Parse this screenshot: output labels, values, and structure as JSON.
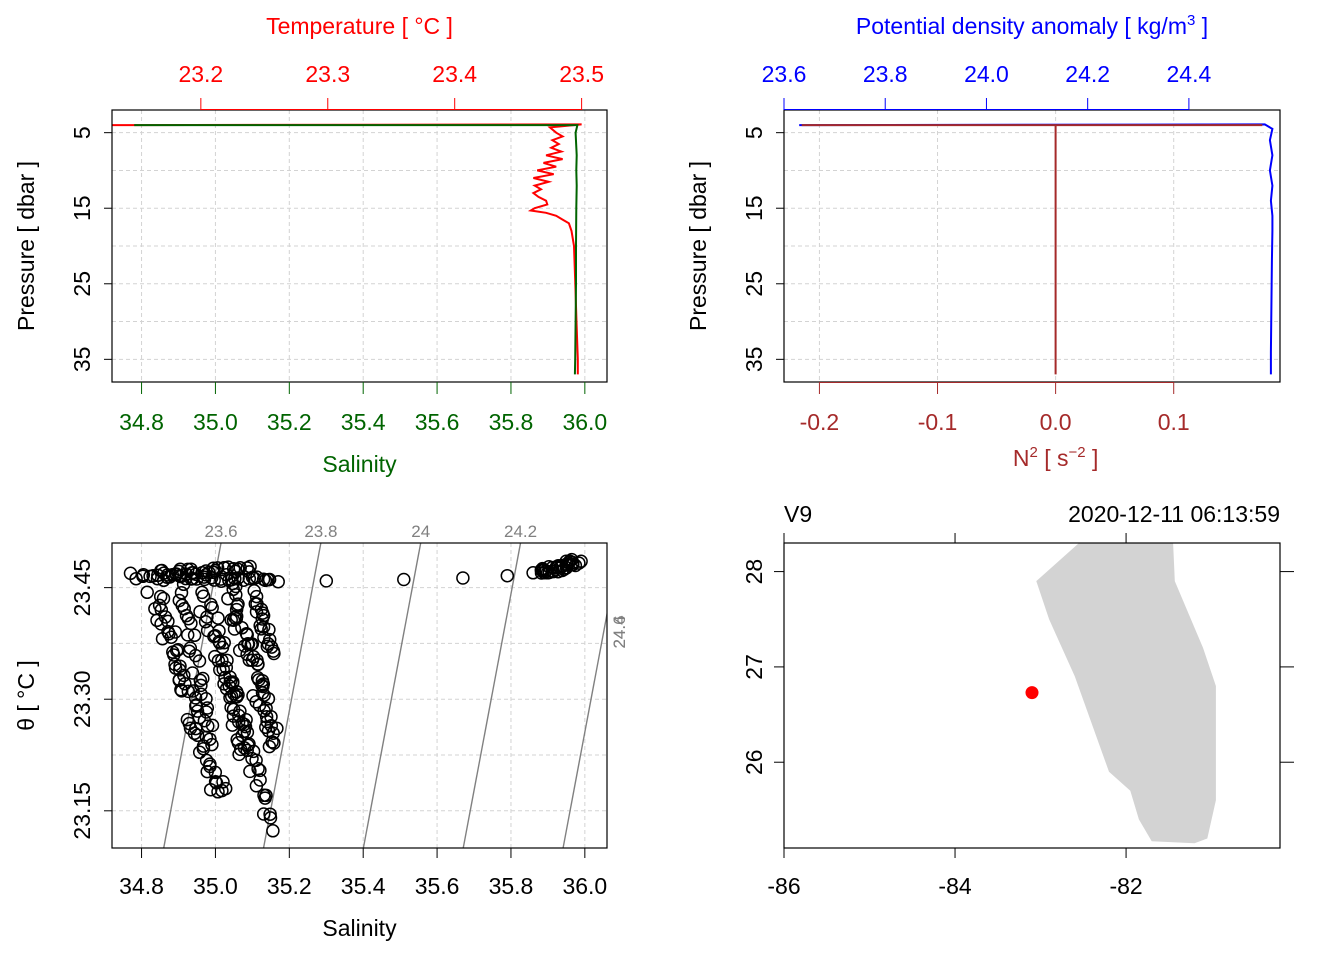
{
  "colors": {
    "temperature": "#ff0000",
    "salinity": "#006400",
    "density": "#0000ff",
    "n2": "#a52a2a",
    "grid": "#d3d3d3",
    "isopycnal": "#808080",
    "land": "#d3d3d3",
    "station": "#ff0000"
  },
  "chart_data": [
    {
      "type": "line",
      "panel": "temperature-salinity-profile",
      "ylabel": "Pressure [ dbar ]",
      "ylim": [
        38,
        2
      ],
      "yticks": [
        "5",
        "15",
        "25",
        "35"
      ],
      "axes": {
        "top": {
          "label": "Temperature [ °C ]",
          "ticks": [
            "23.2",
            "23.3",
            "23.4",
            "23.5"
          ],
          "lim": [
            23.13,
            23.52
          ]
        },
        "bottom": {
          "label": "Salinity",
          "ticks": [
            "34.8",
            "35.0",
            "35.2",
            "35.4",
            "35.6",
            "35.8",
            "36.0"
          ],
          "lim": [
            34.72,
            36.06
          ]
        }
      },
      "grid": true,
      "series": [
        {
          "axis": "top",
          "points": [
            [
              23.13,
              4.0
            ],
            [
              23.5,
              3.9
            ],
            [
              23.475,
              4.3
            ],
            [
              23.48,
              5.0
            ],
            [
              23.485,
              5.5
            ],
            [
              23.477,
              6.0
            ],
            [
              23.482,
              6.5
            ],
            [
              23.476,
              7.0
            ],
            [
              23.484,
              7.5
            ],
            [
              23.472,
              8.0
            ],
            [
              23.485,
              8.5
            ],
            [
              23.47,
              9.0
            ],
            [
              23.48,
              9.5
            ],
            [
              23.465,
              10.0
            ],
            [
              23.478,
              10.5
            ],
            [
              23.462,
              11.0
            ],
            [
              23.474,
              11.5
            ],
            [
              23.463,
              12.0
            ],
            [
              23.468,
              12.5
            ],
            [
              23.462,
              13.0
            ],
            [
              23.466,
              13.5
            ],
            [
              23.472,
              14.0
            ],
            [
              23.473,
              14.5
            ],
            [
              23.463,
              15.0
            ],
            [
              23.46,
              15.3
            ],
            [
              23.472,
              15.6
            ],
            [
              23.48,
              16.0
            ],
            [
              23.485,
              16.5
            ],
            [
              23.49,
              17.0
            ],
            [
              23.492,
              18.0
            ],
            [
              23.494,
              20.0
            ],
            [
              23.495,
              25.0
            ],
            [
              23.496,
              30.0
            ],
            [
              23.497,
              35.0
            ],
            [
              23.497,
              37.0
            ]
          ]
        },
        {
          "axis": "bottom",
          "points": [
            [
              34.78,
              4.0
            ],
            [
              35.98,
              4.0
            ],
            [
              35.975,
              5.0
            ],
            [
              35.978,
              8.0
            ],
            [
              35.977,
              10.0
            ],
            [
              35.978,
              12.0
            ],
            [
              35.977,
              15.0
            ],
            [
              35.976,
              20.0
            ],
            [
              35.976,
              25.0
            ],
            [
              35.975,
              30.0
            ],
            [
              35.974,
              35.0
            ],
            [
              35.973,
              37.0
            ]
          ]
        }
      ]
    },
    {
      "type": "line",
      "panel": "density-n2-profile",
      "ylabel": "Pressure [ dbar ]",
      "ylim": [
        38,
        2
      ],
      "yticks": [
        "5",
        "15",
        "25",
        "35"
      ],
      "axes": {
        "top": {
          "label": "Potential density anomaly [ kg/m³ ]",
          "ticks": [
            "23.6",
            "23.8",
            "24.0",
            "24.2",
            "24.4"
          ],
          "lim": [
            23.6,
            24.58
          ]
        },
        "bottom": {
          "label": "N² [ s⁻² ]",
          "ticks": [
            "-0.2",
            "-0.1",
            "0.0",
            "0.1"
          ],
          "lim": [
            -0.23,
            0.19
          ]
        }
      },
      "grid": true,
      "series": [
        {
          "axis": "top",
          "points": [
            [
              23.63,
              4.0
            ],
            [
              24.55,
              3.9
            ],
            [
              24.565,
              4.5
            ],
            [
              24.56,
              6.0
            ],
            [
              24.565,
              8.0
            ],
            [
              24.56,
              10.0
            ],
            [
              24.565,
              12.0
            ],
            [
              24.562,
              14.0
            ],
            [
              24.565,
              16.0
            ],
            [
              24.565,
              18.0
            ],
            [
              24.564,
              22.0
            ],
            [
              24.563,
              28.0
            ],
            [
              24.562,
              34.0
            ],
            [
              24.562,
              37.0
            ]
          ]
        },
        {
          "axis": "bottom",
          "points": [
            [
              -0.215,
              4.0
            ],
            [
              0.175,
              4.0
            ],
            [
              0.0,
              4.0
            ],
            [
              0.0,
              37.0
            ]
          ]
        }
      ]
    },
    {
      "type": "scatter",
      "panel": "ts-diagram",
      "xlabel": "Salinity",
      "ylabel": "θ [ °C ]",
      "xlim": [
        34.72,
        36.06
      ],
      "ylim": [
        23.1,
        23.51
      ],
      "xticks": [
        "34.8",
        "35.0",
        "35.2",
        "35.4",
        "35.6",
        "35.8",
        "36.0"
      ],
      "yticks": [
        "23.15",
        "23.30",
        "23.45"
      ],
      "grid": true,
      "isopycnals": [
        {
          "label": "23.6",
          "sigma": 23.6
        },
        {
          "label": "23.8",
          "sigma": 23.8
        },
        {
          "label": "24",
          "sigma": 24.0
        },
        {
          "label": "24.2",
          "sigma": 24.2
        },
        {
          "label": "24.4",
          "sigma": 24.4
        },
        {
          "label": "24.6",
          "sigma": 24.6
        }
      ],
      "isopycnal_slope_sigma_per_psu": 0.74,
      "isopycnal_sigma_ref": {
        "S": 34.86,
        "T": 23.1,
        "sigma": 23.6
      },
      "isopycnal_dsigma_dT": -0.28,
      "clusters": [
        {
          "from": [
            34.78,
            23.465
          ],
          "to": [
            35.15,
            23.462
          ],
          "n": 40,
          "spread": 0.01
        },
        {
          "from": [
            34.85,
            23.47
          ],
          "to": [
            35.1,
            23.475
          ],
          "n": 30,
          "spread": 0.008
        },
        {
          "from": [
            34.83,
            23.44
          ],
          "to": [
            35.02,
            23.17
          ],
          "n": 60,
          "spread": 0.02
        },
        {
          "from": [
            34.9,
            23.45
          ],
          "to": [
            34.98,
            23.26
          ],
          "n": 25,
          "spread": 0.015
        },
        {
          "from": [
            34.97,
            23.44
          ],
          "to": [
            35.09,
            23.22
          ],
          "n": 45,
          "spread": 0.02
        },
        {
          "from": [
            35.04,
            23.45
          ],
          "to": [
            35.16,
            23.24
          ],
          "n": 55,
          "spread": 0.02
        },
        {
          "from": [
            35.02,
            23.35
          ],
          "to": [
            35.15,
            23.13
          ],
          "n": 30,
          "spread": 0.015
        },
        {
          "from": [
            35.1,
            23.44
          ],
          "to": [
            35.16,
            23.36
          ],
          "n": 20,
          "spread": 0.012
        },
        {
          "from": [
            35.88,
            23.47
          ],
          "to": [
            35.98,
            23.485
          ],
          "n": 35,
          "spread": 0.01
        }
      ],
      "points": [
        [
          35.17,
          23.458
        ],
        [
          35.3,
          23.459
        ],
        [
          35.51,
          23.461
        ],
        [
          35.67,
          23.463
        ],
        [
          35.79,
          23.466
        ],
        [
          35.86,
          23.47
        ]
      ]
    },
    {
      "type": "map",
      "panel": "station-map",
      "station_label": "V9",
      "datetime": "2020-12-11 06:13:59",
      "xlim": [
        -86.0,
        -80.2
      ],
      "ylim": [
        25.1,
        28.3
      ],
      "xticks": [
        "-86",
        "-84",
        "-82"
      ],
      "yticks": [
        "26",
        "27",
        "28"
      ],
      "station": {
        "lon": -83.1,
        "lat": 26.73
      },
      "land": [
        [
          -82.55,
          28.3
        ],
        [
          -81.45,
          28.3
        ],
        [
          -81.43,
          27.9
        ],
        [
          -81.1,
          27.2
        ],
        [
          -80.95,
          26.8
        ],
        [
          -80.95,
          25.6
        ],
        [
          -81.05,
          25.2
        ],
        [
          -81.2,
          25.15
        ],
        [
          -81.7,
          25.17
        ],
        [
          -81.85,
          25.4
        ],
        [
          -81.95,
          25.7
        ],
        [
          -82.2,
          25.9
        ],
        [
          -82.6,
          26.9
        ],
        [
          -82.9,
          27.5
        ],
        [
          -83.05,
          27.9
        ]
      ]
    }
  ]
}
